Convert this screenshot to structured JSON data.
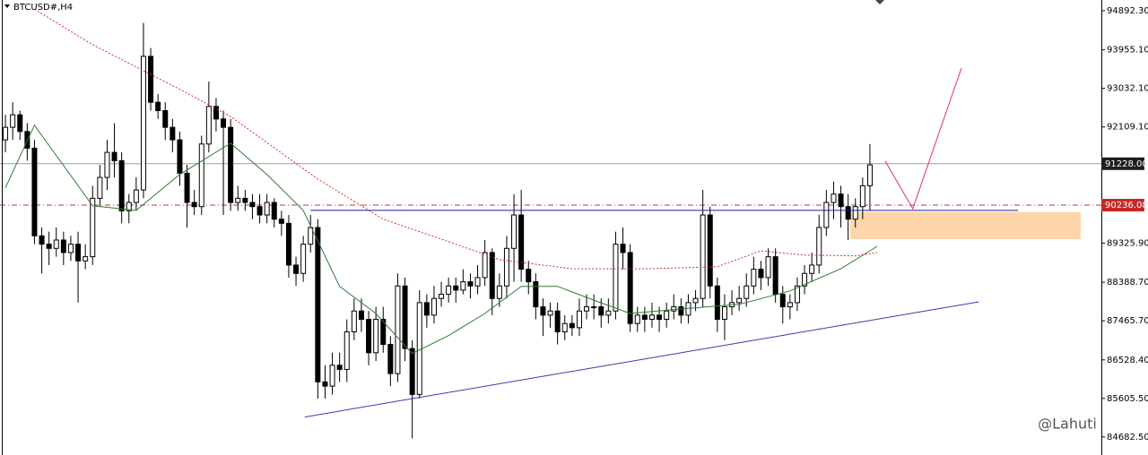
{
  "chart_data": {
    "type": "candlestick",
    "title": "BTCUSD#,H4",
    "watermark": "@Lahuti",
    "up_color": "#ffffff",
    "down_color": "#000000",
    "ylim": [
      84250,
      95150
    ],
    "yticks": [
      {
        "value": 94892.3,
        "label": "94892.30"
      },
      {
        "value": 93955.1,
        "label": "93955.10"
      },
      {
        "value": 93032.1,
        "label": "93032.10"
      },
      {
        "value": 92109.1,
        "label": "92109.10"
      },
      {
        "value": 89325.9,
        "label": "89325.90"
      },
      {
        "value": 88388.7,
        "label": "88388.70"
      },
      {
        "value": 87465.7,
        "label": "87465.70"
      },
      {
        "value": 86528.4,
        "label": "86528.40"
      },
      {
        "value": 85605.5,
        "label": "85605.50"
      },
      {
        "value": 84682.5,
        "label": "84682.50"
      }
    ],
    "open": [
      91800,
      92100,
      92400,
      92000,
      91600,
      89500,
      89300,
      89200,
      89400,
      89100,
      89300,
      88900,
      89000,
      90400,
      90900,
      91500,
      91300,
      90100,
      90300,
      90600,
      93800,
      92700,
      92500,
      92100,
      91800,
      91000,
      90300,
      90200,
      91700,
      92600,
      92300,
      92100,
      90300,
      90400,
      90300,
      90200,
      90000,
      90300,
      89900,
      89800,
      88800,
      88600,
      89300,
      89700,
      86000,
      85900,
      86400,
      86300,
      87200,
      87700,
      87500,
      86700,
      87500,
      86900,
      86200,
      88300,
      86800,
      85700,
      87900,
      87600,
      88000,
      88100,
      88300,
      88200,
      88400,
      88300,
      88500,
      89100,
      88000,
      88300,
      89200,
      90000,
      88700,
      88400,
      87800,
      87600,
      87700,
      87200,
      87400,
      87300,
      87700,
      87800,
      87800,
      87600,
      87700,
      89300,
      89100,
      87400,
      87600,
      87500,
      87600,
      87500,
      87700,
      87800,
      87600,
      87900,
      88000,
      90000,
      88300,
      87500,
      87800,
      87900,
      88000,
      88300,
      88700,
      88500,
      89000,
      88100,
      87800,
      87900,
      88300,
      88600,
      88800,
      89700,
      90300,
      90500,
      90200,
      89900,
      90200,
      90700
    ],
    "high": [
      92400,
      92700,
      92500,
      92200,
      91800,
      89700,
      89600,
      89700,
      89600,
      89500,
      89600,
      89300,
      90700,
      91200,
      91800,
      92200,
      91500,
      90500,
      90900,
      94600,
      94000,
      92900,
      92700,
      92300,
      92000,
      91200,
      90600,
      91900,
      93200,
      92800,
      92500,
      92300,
      90700,
      90600,
      90500,
      90500,
      90500,
      90400,
      90100,
      90000,
      89000,
      89500,
      90000,
      89900,
      86400,
      86700,
      86700,
      87500,
      88000,
      88000,
      87700,
      87800,
      87800,
      87100,
      88600,
      88500,
      87000,
      88200,
      88100,
      88300,
      88400,
      88500,
      88500,
      88700,
      88600,
      88800,
      89400,
      89200,
      88600,
      89500,
      90500,
      90600,
      88900,
      88600,
      88000,
      87900,
      87900,
      87600,
      87600,
      88000,
      88100,
      88100,
      88000,
      88000,
      89600,
      89700,
      89300,
      87800,
      87800,
      87900,
      87800,
      87900,
      88100,
      88000,
      88100,
      88200,
      90600,
      90200,
      88500,
      88100,
      88200,
      88300,
      88600,
      89000,
      88900,
      89200,
      89200,
      88300,
      88100,
      88500,
      88800,
      89100,
      90000,
      90600,
      90800,
      90700,
      90500,
      90400,
      90900,
      91700
    ],
    "low": [
      91500,
      91800,
      91800,
      91300,
      89300,
      88600,
      88800,
      89000,
      88800,
      88900,
      87900,
      88700,
      88800,
      90200,
      90600,
      90900,
      89800,
      89800,
      90100,
      90400,
      92500,
      92300,
      91800,
      91500,
      90700,
      89700,
      90000,
      90000,
      91500,
      92000,
      90000,
      90100,
      90100,
      90100,
      89900,
      89800,
      89800,
      89700,
      89500,
      88500,
      88300,
      88400,
      89100,
      85600,
      85600,
      85700,
      86000,
      86000,
      87000,
      87200,
      86400,
      86500,
      86700,
      85900,
      86000,
      86500,
      84650,
      85600,
      87300,
      87400,
      87800,
      87900,
      87900,
      88100,
      88000,
      88100,
      88300,
      87600,
      87800,
      88000,
      88400,
      88400,
      88100,
      87500,
      87100,
      87300,
      86900,
      87000,
      87100,
      87100,
      87500,
      87500,
      87300,
      87400,
      87500,
      88700,
      87200,
      87200,
      87200,
      87300,
      87200,
      87300,
      87500,
      87400,
      87400,
      87700,
      87800,
      88000,
      87200,
      87000,
      87600,
      87700,
      87800,
      88100,
      88200,
      88300,
      87900,
      87400,
      87500,
      87700,
      88100,
      88400,
      88600,
      89500,
      89900,
      89700,
      89400,
      89700,
      89900,
      90100
    ],
    "close": [
      92100,
      92400,
      92000,
      91600,
      89500,
      89300,
      89200,
      89400,
      89100,
      89300,
      88900,
      89000,
      90400,
      90900,
      91500,
      91300,
      90100,
      90300,
      90600,
      93800,
      92700,
      92500,
      92100,
      91800,
      91000,
      90300,
      90200,
      91700,
      92600,
      92300,
      92100,
      90300,
      90400,
      90300,
      90200,
      90000,
      90300,
      89900,
      89800,
      88800,
      88600,
      89300,
      89700,
      86000,
      85900,
      86400,
      86300,
      87200,
      87700,
      87500,
      86700,
      87500,
      86900,
      86200,
      88300,
      86800,
      85700,
      87900,
      87600,
      88000,
      88100,
      88300,
      88200,
      88400,
      88300,
      88500,
      89100,
      88000,
      88300,
      89200,
      90000,
      88700,
      88400,
      87800,
      87600,
      87700,
      87200,
      87400,
      87300,
      87700,
      87800,
      87800,
      87600,
      87700,
      89300,
      89100,
      87400,
      87600,
      87500,
      87600,
      87500,
      87700,
      87800,
      87600,
      87900,
      88000,
      90000,
      88300,
      87500,
      87800,
      87900,
      88000,
      88300,
      88700,
      88500,
      89000,
      88100,
      87800,
      87900,
      88300,
      88600,
      88800,
      89700,
      90300,
      90500,
      90200,
      89900,
      90200,
      90700,
      91200
    ],
    "price_lines": [
      {
        "value": 91228.0,
        "label": "91228.00",
        "color": "#9e9e9e",
        "label_color": "#1e1e1e",
        "style": "solid"
      },
      {
        "value": 90236.08,
        "label": "90236.08",
        "color": "#b33a3a",
        "label_color": "#c62828",
        "style": "dashdot"
      }
    ],
    "overlays": [
      {
        "color": "#2e7d32",
        "style": "solid",
        "x": [
          0,
          4,
          12,
          18,
          24,
          31,
          36,
          41,
          46,
          51,
          56,
          61,
          66,
          71,
          76,
          81,
          86,
          93,
          101,
          108,
          115,
          120
        ],
        "values": [
          90650,
          92150,
          90220,
          90110,
          90970,
          91720,
          90970,
          90110,
          88290,
          87640,
          86680,
          87110,
          87640,
          88290,
          88290,
          87960,
          87640,
          87750,
          87860,
          88180,
          88710,
          89250
        ]
      },
      {
        "color": "#d32f2f",
        "style": "dotted",
        "x": [
          4,
          12,
          24,
          31,
          43,
          52,
          61,
          68,
          78,
          88,
          98,
          104,
          110,
          117,
          120
        ],
        "values": [
          94930,
          94080,
          93010,
          92360,
          90860,
          89900,
          89360,
          88930,
          88710,
          88710,
          88760,
          89140,
          89040,
          89020,
          89100
        ]
      },
      {
        "color": "#1a1aa0",
        "style": "solid",
        "x": [
          42,
          139.4
        ],
        "values": [
          90110,
          90110
        ]
      },
      {
        "color": "#3a3ab0",
        "style": "solid",
        "x": [
          41.2,
          134
        ],
        "values": [
          85160,
          87920
        ]
      },
      {
        "color": "#e0306a",
        "style": "solid",
        "x": [
          121.1,
          124.9,
          131.6
        ],
        "values": [
          91290,
          90150,
          93520
        ]
      }
    ],
    "zones": [
      {
        "color": "#fcd5a8",
        "x": [
          116.3,
          148
        ],
        "values": [
          90070,
          89420
        ]
      }
    ]
  }
}
